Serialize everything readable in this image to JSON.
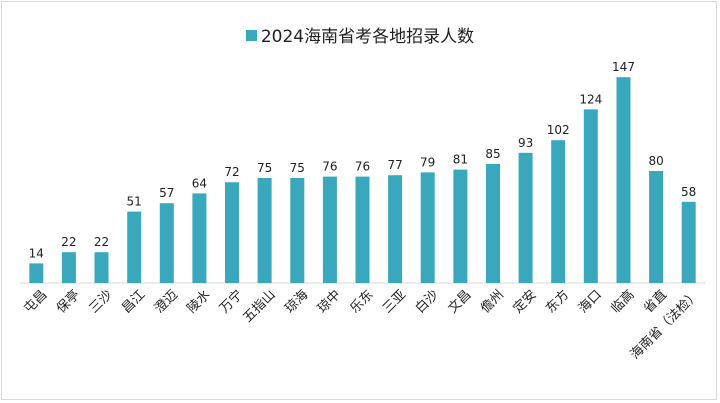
{
  "chart_data": {
    "type": "bar",
    "title": "2024海南省考各地招录人数",
    "xlabel": "",
    "ylabel": "",
    "ylim": [
      0,
      160
    ],
    "grid": false,
    "legend_position": "top",
    "bar_color": "#3aa8bc",
    "categories": [
      "屯昌",
      "保亭",
      "三沙",
      "昌江",
      "澄迈",
      "陵水",
      "万宁",
      "五指山",
      "琼海",
      "琼中",
      "乐东",
      "三亚",
      "白沙",
      "文昌",
      "儋州",
      "定安",
      "东方",
      "海口",
      "临高",
      "省直",
      "海南省（法检）"
    ],
    "series": [
      {
        "name": "2024海南省考各地招录人数",
        "values": [
          14,
          22,
          22,
          51,
          57,
          64,
          72,
          75,
          75,
          76,
          76,
          77,
          79,
          81,
          85,
          93,
          102,
          124,
          147,
          80,
          58
        ]
      }
    ]
  }
}
